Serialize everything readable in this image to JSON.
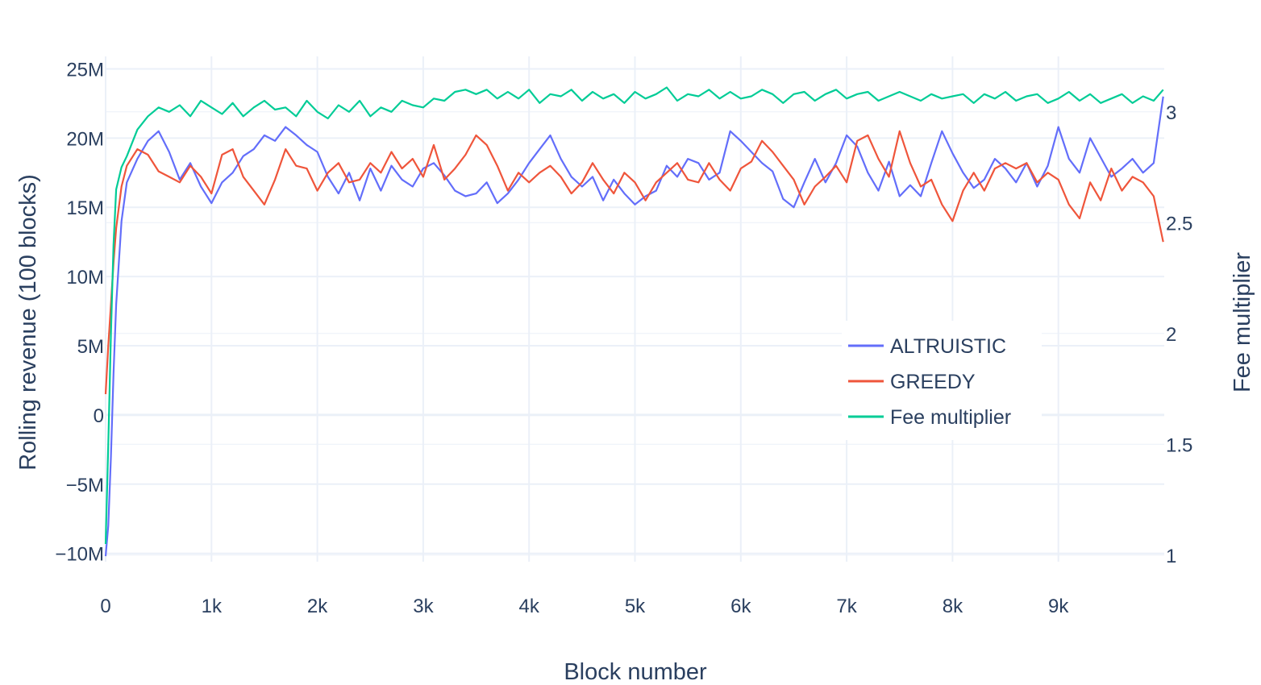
{
  "chart_data": {
    "type": "line",
    "xlabel": "Block number",
    "ylabel": "Rolling revenue (100 blocks)",
    "y2label": "Fee multiplier",
    "xlim": [
      0,
      10000
    ],
    "ylim": [
      -10600000,
      25900000
    ],
    "y2lim": [
      0.97,
      3.25
    ],
    "grid": true,
    "legend_position": "right-middle",
    "x_ticks": [
      {
        "value": 0,
        "label": "0"
      },
      {
        "value": 1000,
        "label": "1k"
      },
      {
        "value": 2000,
        "label": "2k"
      },
      {
        "value": 3000,
        "label": "3k"
      },
      {
        "value": 4000,
        "label": "4k"
      },
      {
        "value": 5000,
        "label": "5k"
      },
      {
        "value": 6000,
        "label": "6k"
      },
      {
        "value": 7000,
        "label": "7k"
      },
      {
        "value": 8000,
        "label": "8k"
      },
      {
        "value": 9000,
        "label": "9k"
      }
    ],
    "y_ticks": [
      {
        "value": 25000000,
        "label": "25M"
      },
      {
        "value": 20000000,
        "label": "20M"
      },
      {
        "value": 15000000,
        "label": "15M"
      },
      {
        "value": 10000000,
        "label": "10M"
      },
      {
        "value": 5000000,
        "label": "5M"
      },
      {
        "value": 0,
        "label": "0"
      },
      {
        "value": -5000000,
        "label": "−5M"
      },
      {
        "value": -10000000,
        "label": "−10M"
      }
    ],
    "y2_ticks": [
      {
        "value": 3,
        "label": "3"
      },
      {
        "value": 2.5,
        "label": "2.5"
      },
      {
        "value": 2,
        "label": "2"
      },
      {
        "value": 1.5,
        "label": "1.5"
      },
      {
        "value": 1,
        "label": "1"
      }
    ],
    "series": [
      {
        "name": "ALTRUISTIC",
        "color": "#636efa",
        "axis": "y",
        "x": [
          0,
          25,
          50,
          75,
          100,
          150,
          200,
          300,
          400,
          500,
          600,
          700,
          800,
          900,
          1000,
          1100,
          1200,
          1300,
          1400,
          1500,
          1600,
          1700,
          1800,
          1900,
          2000,
          2100,
          2200,
          2300,
          2400,
          2500,
          2600,
          2700,
          2800,
          2900,
          3000,
          3100,
          3200,
          3300,
          3400,
          3500,
          3600,
          3700,
          3800,
          3900,
          4000,
          4100,
          4200,
          4300,
          4400,
          4500,
          4600,
          4700,
          4800,
          4900,
          5000,
          5100,
          5200,
          5300,
          5400,
          5500,
          5600,
          5700,
          5800,
          5900,
          6000,
          6100,
          6200,
          6300,
          6400,
          6500,
          6600,
          6700,
          6800,
          6900,
          7000,
          7100,
          7200,
          7300,
          7400,
          7500,
          7600,
          7700,
          7800,
          7900,
          8000,
          8100,
          8200,
          8300,
          8400,
          8500,
          8600,
          8700,
          8800,
          8900,
          9000,
          9100,
          9200,
          9300,
          9400,
          9500,
          9600,
          9700,
          9800,
          9900,
          9990
        ],
        "values": [
          -10200000,
          -8000000,
          -3000000,
          3000000,
          8000000,
          14000000,
          16800000,
          18500000,
          19800000,
          20500000,
          19000000,
          17000000,
          18200000,
          16500000,
          15300000,
          16800000,
          17500000,
          18700000,
          19200000,
          20200000,
          19800000,
          20800000,
          20200000,
          19500000,
          19000000,
          17200000,
          16000000,
          17500000,
          15500000,
          17800000,
          16200000,
          18000000,
          17000000,
          16500000,
          17800000,
          18200000,
          17300000,
          16200000,
          15800000,
          16000000,
          16800000,
          15300000,
          16000000,
          17000000,
          18200000,
          19200000,
          20200000,
          18500000,
          17200000,
          16500000,
          17200000,
          15500000,
          17000000,
          16000000,
          15200000,
          15800000,
          16200000,
          18000000,
          17200000,
          18500000,
          18200000,
          17000000,
          17500000,
          20500000,
          19800000,
          19000000,
          18200000,
          17600000,
          15600000,
          15000000,
          16800000,
          18500000,
          16800000,
          18200000,
          20200000,
          19400000,
          17500000,
          16200000,
          18300000,
          15800000,
          16600000,
          15800000,
          18200000,
          20500000,
          18900000,
          17500000,
          16400000,
          17000000,
          18500000,
          17800000,
          16800000,
          18200000,
          16500000,
          18000000,
          20800000,
          18500000,
          17500000,
          20000000,
          18600000,
          17200000,
          17800000,
          18500000,
          17500000,
          18200000,
          23000000
        ]
      },
      {
        "name": "GREEDY",
        "color": "#ef553b",
        "axis": "y",
        "x": [
          0,
          25,
          50,
          75,
          100,
          150,
          200,
          300,
          400,
          500,
          600,
          700,
          800,
          900,
          1000,
          1100,
          1200,
          1300,
          1400,
          1500,
          1600,
          1700,
          1800,
          1900,
          2000,
          2100,
          2200,
          2300,
          2400,
          2500,
          2600,
          2700,
          2800,
          2900,
          3000,
          3100,
          3200,
          3300,
          3400,
          3500,
          3600,
          3700,
          3800,
          3900,
          4000,
          4100,
          4200,
          4300,
          4400,
          4500,
          4600,
          4700,
          4800,
          4900,
          5000,
          5100,
          5200,
          5300,
          5400,
          5500,
          5600,
          5700,
          5800,
          5900,
          6000,
          6100,
          6200,
          6300,
          6400,
          6500,
          6600,
          6700,
          6800,
          6900,
          7000,
          7100,
          7200,
          7300,
          7400,
          7500,
          7600,
          7700,
          7800,
          7900,
          8000,
          8100,
          8200,
          8300,
          8400,
          8500,
          8600,
          8700,
          8800,
          8900,
          9000,
          9100,
          9200,
          9300,
          9400,
          9500,
          9600,
          9700,
          9800,
          9900,
          9990
        ],
        "values": [
          1500000,
          5000000,
          8000000,
          11000000,
          13500000,
          16500000,
          18000000,
          19200000,
          18800000,
          17600000,
          17200000,
          16800000,
          18000000,
          17200000,
          16000000,
          18800000,
          19200000,
          17200000,
          16200000,
          15200000,
          17000000,
          19200000,
          18000000,
          17800000,
          16200000,
          17500000,
          18200000,
          16800000,
          17000000,
          18200000,
          17500000,
          19000000,
          17800000,
          18500000,
          17200000,
          19500000,
          17000000,
          17800000,
          18800000,
          20200000,
          19500000,
          18000000,
          16200000,
          17500000,
          16800000,
          17500000,
          18000000,
          17200000,
          16000000,
          16800000,
          18200000,
          17000000,
          16000000,
          17500000,
          16800000,
          15500000,
          16800000,
          17500000,
          18200000,
          17000000,
          16800000,
          18200000,
          17000000,
          16200000,
          17800000,
          18300000,
          19800000,
          19000000,
          18000000,
          17000000,
          15200000,
          16500000,
          17200000,
          18000000,
          16800000,
          19800000,
          20200000,
          18500000,
          17200000,
          20500000,
          18200000,
          16500000,
          17000000,
          15200000,
          14000000,
          16200000,
          17500000,
          16200000,
          17800000,
          18200000,
          17800000,
          18200000,
          16800000,
          17500000,
          17000000,
          15200000,
          14200000,
          16800000,
          15500000,
          17800000,
          16200000,
          17200000,
          16800000,
          15800000,
          12500000
        ]
      },
      {
        "name": "Fee multiplier",
        "color": "#00cc96",
        "axis": "y2",
        "x": [
          0,
          25,
          50,
          75,
          100,
          150,
          200,
          300,
          400,
          500,
          600,
          700,
          800,
          900,
          1000,
          1100,
          1200,
          1300,
          1400,
          1500,
          1600,
          1700,
          1800,
          1900,
          2000,
          2100,
          2200,
          2300,
          2400,
          2500,
          2600,
          2700,
          2800,
          2900,
          3000,
          3100,
          3200,
          3300,
          3400,
          3500,
          3600,
          3700,
          3800,
          3900,
          4000,
          4100,
          4200,
          4300,
          4400,
          4500,
          4600,
          4700,
          4800,
          4900,
          5000,
          5100,
          5200,
          5300,
          5400,
          5500,
          5600,
          5700,
          5800,
          5900,
          6000,
          6100,
          6200,
          6300,
          6400,
          6500,
          6600,
          6700,
          6800,
          6900,
          7000,
          7100,
          7200,
          7300,
          7400,
          7500,
          7600,
          7700,
          7800,
          7900,
          8000,
          8100,
          8200,
          8300,
          8400,
          8500,
          8600,
          8700,
          8800,
          8900,
          9000,
          9100,
          9200,
          9300,
          9400,
          9500,
          9600,
          9700,
          9800,
          9900,
          9990
        ],
        "values": [
          1.05,
          1.5,
          2.0,
          2.4,
          2.65,
          2.75,
          2.8,
          2.92,
          2.98,
          3.02,
          3.0,
          3.03,
          2.98,
          3.05,
          3.02,
          2.99,
          3.04,
          2.98,
          3.02,
          3.05,
          3.01,
          3.02,
          2.98,
          3.05,
          3.0,
          2.97,
          3.03,
          3.0,
          3.05,
          2.98,
          3.02,
          3.0,
          3.05,
          3.03,
          3.02,
          3.06,
          3.05,
          3.09,
          3.1,
          3.08,
          3.1,
          3.06,
          3.09,
          3.06,
          3.1,
          3.04,
          3.08,
          3.07,
          3.1,
          3.05,
          3.09,
          3.06,
          3.08,
          3.04,
          3.09,
          3.06,
          3.08,
          3.11,
          3.05,
          3.08,
          3.07,
          3.1,
          3.06,
          3.09,
          3.06,
          3.07,
          3.1,
          3.08,
          3.04,
          3.08,
          3.09,
          3.05,
          3.08,
          3.1,
          3.06,
          3.08,
          3.09,
          3.05,
          3.07,
          3.09,
          3.07,
          3.05,
          3.08,
          3.06,
          3.07,
          3.08,
          3.04,
          3.08,
          3.06,
          3.09,
          3.05,
          3.07,
          3.08,
          3.04,
          3.06,
          3.09,
          3.05,
          3.08,
          3.04,
          3.06,
          3.08,
          3.04,
          3.07,
          3.05,
          3.1
        ]
      }
    ]
  }
}
